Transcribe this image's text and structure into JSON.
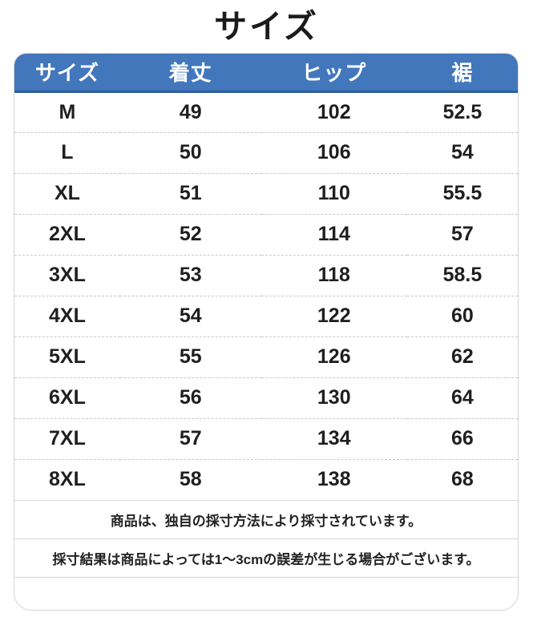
{
  "title": "サイズ",
  "table": {
    "headers": [
      "サイズ",
      "着丈",
      "ヒップ",
      "裾"
    ],
    "rows": [
      [
        "M",
        "49",
        "102",
        "52.5"
      ],
      [
        "L",
        "50",
        "106",
        "54"
      ],
      [
        "XL",
        "51",
        "110",
        "55.5"
      ],
      [
        "2XL",
        "52",
        "114",
        "57"
      ],
      [
        "3XL",
        "53",
        "118",
        "58.5"
      ],
      [
        "4XL",
        "54",
        "122",
        "60"
      ],
      [
        "5XL",
        "55",
        "126",
        "62"
      ],
      [
        "6XL",
        "56",
        "130",
        "64"
      ],
      [
        "7XL",
        "57",
        "134",
        "66"
      ],
      [
        "8XL",
        "58",
        "138",
        "68"
      ]
    ]
  },
  "notes": [
    "商品は、独自の採寸方法により採寸されています。",
    "採寸結果は商品によっては1〜3cmの誤差が生じる場合がございます。"
  ],
  "colors": {
    "header_bg": "#4377bc",
    "header_border": "#2f5f9f",
    "header_text": "#ffffff",
    "body_text": "#1f1f1f",
    "card_border": "#d5d5d5"
  }
}
